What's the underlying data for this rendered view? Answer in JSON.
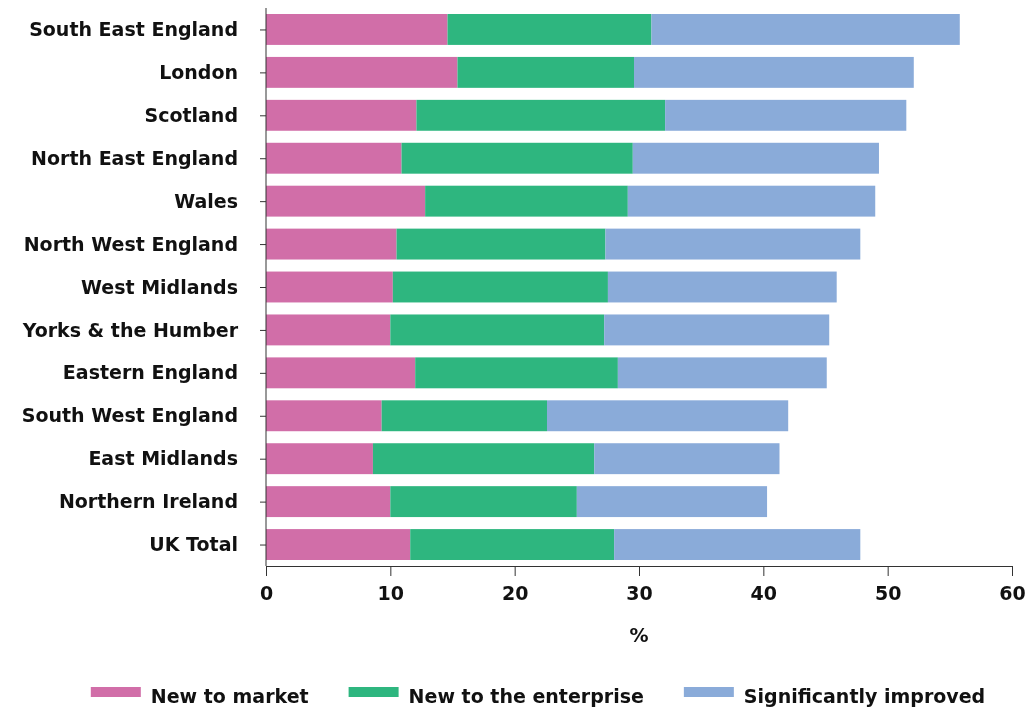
{
  "chart_data": {
    "type": "bar",
    "orientation": "horizontal",
    "stacked": true,
    "xlabel": "%",
    "categories": [
      "South East England",
      "London",
      "Scotland",
      "North East England",
      "Wales",
      "North West England",
      "West Midlands",
      "Yorks & the Humber",
      "Eastern England",
      "South West England",
      "East Midlands",
      "Northern Ireland",
      "UK Total"
    ],
    "series": [
      {
        "name": "New to market",
        "color": "#d16ea8",
        "values": [
          14.6,
          15.4,
          12.1,
          10.9,
          12.8,
          10.5,
          10.2,
          10.0,
          12.0,
          9.3,
          8.6,
          10.0,
          11.6
        ]
      },
      {
        "name": "New to the enterprise",
        "color": "#2eb67f",
        "values": [
          16.4,
          14.2,
          20.0,
          18.6,
          16.3,
          16.8,
          17.3,
          17.2,
          16.3,
          13.3,
          17.8,
          15.0,
          16.4
        ]
      },
      {
        "name": "Significantly improved",
        "color": "#8aabd9",
        "values": [
          24.8,
          22.5,
          19.4,
          19.8,
          19.9,
          20.5,
          18.4,
          18.1,
          16.8,
          19.4,
          14.9,
          15.3,
          19.8
        ]
      }
    ],
    "xlim": [
      0,
      60
    ],
    "xticks": [
      0,
      10,
      20,
      30,
      40,
      50,
      60
    ],
    "grid": false,
    "legend": "bottom"
  }
}
